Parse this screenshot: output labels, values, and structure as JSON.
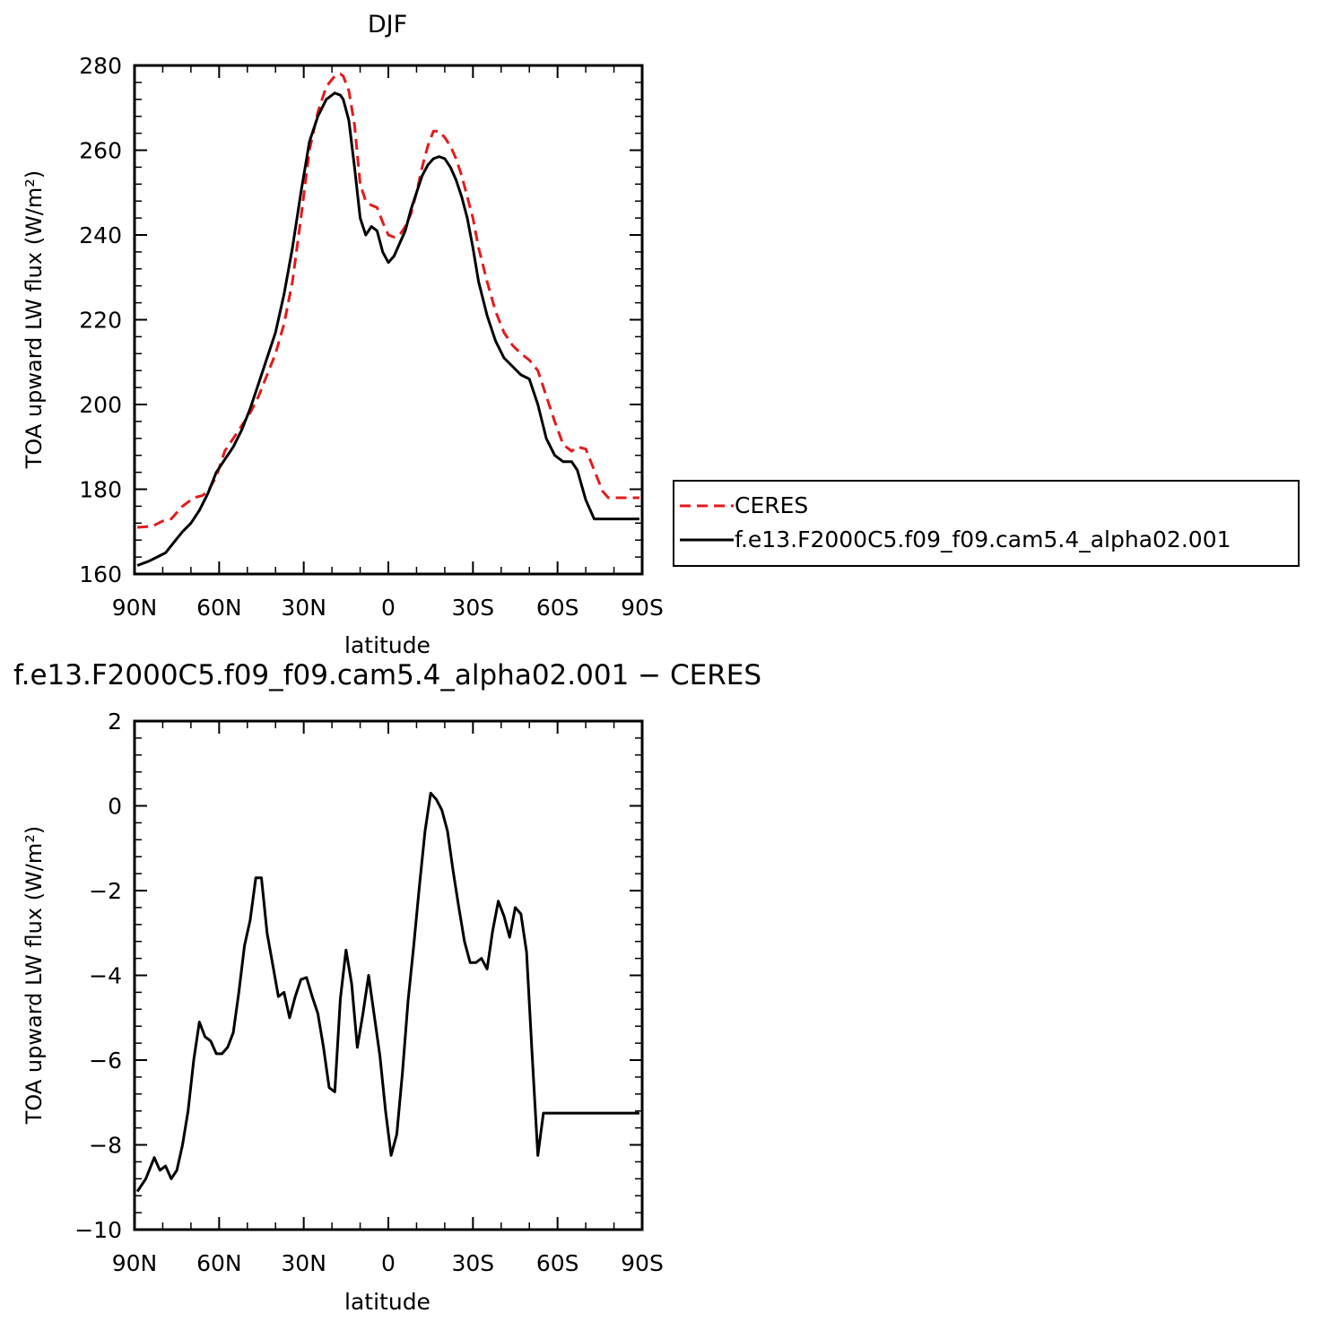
{
  "colors": {
    "ceres": "#e41a1c",
    "model": "#000000"
  },
  "x_tick_labels": [
    "90N",
    "60N",
    "30N",
    "0",
    "30S",
    "60S",
    "90S"
  ],
  "chart_data": [
    {
      "type": "line",
      "title": "DJF",
      "xlabel": "latitude",
      "ylabel": "TOA upward LW flux (W/m²)",
      "xlim": [
        90,
        -90
      ],
      "ylim": [
        160,
        280
      ],
      "yticks": [
        160,
        180,
        200,
        220,
        240,
        260,
        280
      ],
      "legend_position": "right",
      "series": [
        {
          "name": "CERES",
          "style": "dashed",
          "x": [
            89,
            85,
            83,
            80,
            77,
            73,
            69,
            66,
            64,
            61,
            58,
            55,
            52,
            49,
            46,
            43,
            40,
            37,
            34,
            31,
            28,
            25,
            22,
            19,
            17,
            16,
            14,
            12,
            10,
            8,
            6,
            4,
            2,
            0,
            -2,
            -4,
            -6,
            -8,
            -10,
            -12,
            -14,
            -16,
            -18,
            -20,
            -22,
            -24,
            -25,
            -26,
            -28,
            -30,
            -32,
            -35,
            -38,
            -41,
            -44,
            -47,
            -50,
            -53,
            -56,
            -59,
            -62,
            -65,
            -67,
            -70,
            -73,
            -76,
            -78,
            -80,
            -82,
            -85,
            -87,
            -89
          ],
          "y": [
            171,
            171.2,
            171.5,
            172.5,
            173,
            176,
            178,
            178.5,
            179.5,
            183,
            189,
            192,
            195,
            198,
            202,
            207,
            212,
            219,
            229,
            244,
            260,
            269,
            275,
            277.5,
            278,
            277.5,
            274,
            266,
            252,
            248,
            247,
            246.5,
            243,
            240,
            239.5,
            240,
            242,
            245,
            250,
            256,
            261,
            264.5,
            264.5,
            263,
            261,
            258,
            256,
            254,
            249,
            244,
            237,
            229,
            222,
            217,
            214,
            212,
            210.5,
            208,
            202,
            196,
            190.5,
            189,
            190,
            189.5,
            184.5,
            179.5,
            178,
            178,
            178,
            178,
            178,
            178
          ]
        },
        {
          "name": "f.e13.F2000C5.f09_f09.cam5.4_alpha02.001",
          "style": "solid",
          "x": [
            89,
            85,
            82,
            79,
            76,
            73,
            70,
            67,
            64,
            61,
            58,
            55,
            52,
            49,
            46,
            43,
            40,
            37,
            34,
            31,
            28,
            25,
            22,
            19,
            17,
            16,
            14,
            12,
            10,
            8,
            6,
            4,
            2,
            0,
            -2,
            -4,
            -6,
            -8,
            -10,
            -12,
            -14,
            -16,
            -18,
            -20,
            -22,
            -24,
            -26,
            -28,
            -30,
            -32,
            -35,
            -38,
            -41,
            -44,
            -47,
            -50,
            -53,
            -56,
            -59,
            -62,
            -65,
            -67,
            -70,
            -73,
            -76,
            -78,
            -80,
            -82,
            -85,
            -87,
            -89
          ],
          "y": [
            162,
            163,
            164,
            165,
            167.5,
            170,
            172,
            175,
            179,
            184,
            187,
            190,
            194,
            199,
            205,
            211,
            217,
            226,
            237,
            250,
            262,
            268,
            272,
            273.5,
            273,
            272,
            267,
            256,
            244,
            240,
            242,
            241,
            236,
            233.5,
            235,
            238,
            241,
            246,
            250,
            254,
            256.5,
            258,
            258.5,
            258,
            256,
            253,
            249,
            244,
            237,
            229,
            221,
            215,
            211,
            209,
            207,
            206,
            200,
            192,
            188,
            186.5,
            186.5,
            184.5,
            177.5,
            173,
            173,
            173,
            173,
            173,
            173,
            173,
            173
          ]
        }
      ]
    },
    {
      "type": "line",
      "title": "f.e13.F2000C5.f09_f09.cam5.4_alpha02.001 − CERES",
      "xlabel": "latitude",
      "ylabel": "TOA upward LW flux (W/m²)",
      "xlim": [
        90,
        -90
      ],
      "ylim": [
        -10,
        2
      ],
      "yticks": [
        -10,
        -8,
        -6,
        -4,
        -2,
        0,
        2
      ],
      "series": [
        {
          "style": "solid",
          "x": [
            89,
            86,
            83,
            81,
            79,
            77,
            75,
            73,
            71,
            69,
            67,
            65,
            63,
            61,
            59,
            57,
            55,
            53,
            51,
            49,
            47,
            45,
            43,
            41,
            39,
            37,
            35,
            33,
            31,
            29,
            27,
            25,
            23,
            21,
            19,
            17,
            15,
            13,
            11,
            9,
            7,
            5,
            3,
            1,
            -1,
            -3,
            -5,
            -7,
            -9,
            -11,
            -13,
            -15,
            -17,
            -19,
            -21,
            -23,
            -25,
            -27,
            -29,
            -31,
            -33,
            -35,
            -37,
            -39,
            -41,
            -43,
            -45,
            -47,
            -49,
            -51,
            -53,
            -55,
            -57,
            -59,
            -61,
            -63,
            -65,
            -67,
            -69,
            -71,
            -73,
            -75,
            -77,
            -79,
            -81,
            -83,
            -85,
            -87,
            -89
          ],
          "y": [
            -9.1,
            -8.8,
            -8.3,
            -8.6,
            -8.5,
            -8.8,
            -8.6,
            -8.0,
            -7.2,
            -6.0,
            -5.1,
            -5.45,
            -5.55,
            -5.85,
            -5.85,
            -5.7,
            -5.35,
            -4.4,
            -3.3,
            -2.7,
            -1.7,
            -1.7,
            -3.0,
            -3.75,
            -4.5,
            -4.4,
            -5.0,
            -4.5,
            -4.1,
            -4.05,
            -4.5,
            -4.9,
            -5.7,
            -6.65,
            -6.75,
            -4.55,
            -3.4,
            -4.2,
            -5.7,
            -4.9,
            -4.0,
            -4.95,
            -5.9,
            -7.2,
            -8.25,
            -7.75,
            -6.3,
            -4.6,
            -3.3,
            -1.9,
            -0.6,
            0.3,
            0.15,
            -0.1,
            -0.6,
            -1.55,
            -2.4,
            -3.2,
            -3.7,
            -3.7,
            -3.6,
            -3.85,
            -2.95,
            -2.25,
            -2.6,
            -3.1,
            -2.4,
            -2.55,
            -3.45,
            -5.9,
            -8.25,
            -7.25,
            -7.25,
            -7.25,
            -7.25,
            -7.25,
            -7.25,
            -7.25,
            -7.25,
            -7.25,
            -7.25,
            -7.25,
            -7.25,
            -7.25,
            -7.25,
            -7.25,
            -7.25,
            -7.25,
            -7.25
          ]
        }
      ]
    }
  ]
}
